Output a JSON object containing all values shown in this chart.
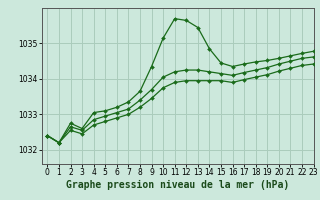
{
  "title": "Graphe pression niveau de la mer (hPa)",
  "bg_color": "#cce8dc",
  "grid_color": "#aaccbc",
  "line_color": "#1a6b1a",
  "xlim": [
    -0.5,
    23
  ],
  "ylim": [
    1031.6,
    1036.0
  ],
  "yticks": [
    1032,
    1033,
    1034,
    1035
  ],
  "xticks": [
    0,
    1,
    2,
    3,
    4,
    5,
    6,
    7,
    8,
    9,
    10,
    11,
    12,
    13,
    14,
    15,
    16,
    17,
    18,
    19,
    20,
    21,
    22,
    23
  ],
  "line1_x": [
    0,
    1,
    2,
    3,
    4,
    5,
    6,
    7,
    8,
    9,
    10,
    11,
    12,
    13,
    14,
    15,
    16,
    17,
    18,
    19,
    20,
    21,
    22,
    23
  ],
  "line1_y": [
    1032.4,
    1032.2,
    1032.75,
    1032.6,
    1033.05,
    1033.1,
    1033.2,
    1033.35,
    1033.65,
    1034.35,
    1035.15,
    1035.7,
    1035.65,
    1035.45,
    1034.85,
    1034.45,
    1034.35,
    1034.42,
    1034.48,
    1034.52,
    1034.58,
    1034.65,
    1034.72,
    1034.78
  ],
  "line2_x": [
    0,
    1,
    2,
    3,
    4,
    5,
    6,
    7,
    8,
    9,
    10,
    11,
    12,
    13,
    14,
    15,
    16,
    17,
    18,
    19,
    20,
    21,
    22,
    23
  ],
  "line2_y": [
    1032.4,
    1032.2,
    1032.65,
    1032.55,
    1032.85,
    1032.95,
    1033.05,
    1033.15,
    1033.4,
    1033.7,
    1034.05,
    1034.2,
    1034.25,
    1034.25,
    1034.2,
    1034.15,
    1034.1,
    1034.18,
    1034.25,
    1034.32,
    1034.42,
    1034.5,
    1034.58,
    1034.62
  ],
  "line3_x": [
    0,
    1,
    2,
    3,
    4,
    5,
    6,
    7,
    8,
    9,
    10,
    11,
    12,
    13,
    14,
    15,
    16,
    17,
    18,
    19,
    20,
    21,
    22,
    23
  ],
  "line3_y": [
    1032.4,
    1032.2,
    1032.55,
    1032.45,
    1032.7,
    1032.8,
    1032.9,
    1033.0,
    1033.2,
    1033.45,
    1033.75,
    1033.9,
    1033.95,
    1033.95,
    1033.95,
    1033.95,
    1033.9,
    1033.98,
    1034.05,
    1034.12,
    1034.22,
    1034.3,
    1034.38,
    1034.42
  ],
  "markersize": 2.0,
  "linewidth": 0.9,
  "tick_fontsize": 5.5,
  "title_fontsize": 7.0
}
